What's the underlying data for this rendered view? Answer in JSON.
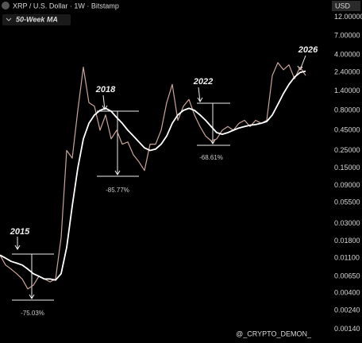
{
  "chart_data": {
    "type": "line",
    "title": "XRP / U.S. Dollar · 1W · Bitstamp",
    "currency": "USD",
    "log_scale": true,
    "grid": false,
    "ylim": [
      0.0011,
      16
    ],
    "yticks": [
      {
        "value": 12,
        "label": "12.00000"
      },
      {
        "value": 7,
        "label": "7.00000"
      },
      {
        "value": 4,
        "label": "4.00000"
      },
      {
        "value": 2.4,
        "label": "2.40000"
      },
      {
        "value": 1.4,
        "label": "1.40000"
      },
      {
        "value": 0.8,
        "label": "0.80000"
      },
      {
        "value": 0.45,
        "label": "0.45000"
      },
      {
        "value": 0.25,
        "label": "0.25000"
      },
      {
        "value": 0.15,
        "label": "0.15000"
      },
      {
        "value": 0.09,
        "label": "0.09000"
      },
      {
        "value": 0.055,
        "label": "0.05500"
      },
      {
        "value": 0.03,
        "label": "0.03000"
      },
      {
        "value": 0.018,
        "label": "0.01800"
      },
      {
        "value": 0.011,
        "label": "0.01100"
      },
      {
        "value": 0.0065,
        "label": "0.00650"
      },
      {
        "value": 0.004,
        "label": "0.00400"
      },
      {
        "value": 0.0024,
        "label": "0.00240"
      },
      {
        "value": 0.0014,
        "label": "0.00140"
      }
    ],
    "series": [
      {
        "color": "#c9a49a",
        "values": [
          0.012,
          0.009,
          0.008,
          0.007,
          0.006,
          0.0045,
          0.005,
          0.0065,
          0.006,
          0.0055,
          0.006,
          0.02,
          0.25,
          0.2,
          0.8,
          2.8,
          1.0,
          0.9,
          0.45,
          0.7,
          0.35,
          0.45,
          0.3,
          0.32,
          0.22,
          0.18,
          0.14,
          0.3,
          0.3,
          0.45,
          1.0,
          1.7,
          0.6,
          0.9,
          1.1,
          0.7,
          0.5,
          0.38,
          0.33,
          0.35,
          0.45,
          0.5,
          0.45,
          0.55,
          0.6,
          0.5,
          0.6,
          0.55,
          0.6,
          2.2,
          3.2,
          2.6,
          3.0,
          2.0,
          2.8,
          2.2
        ]
      },
      {
        "name": "50-Week MA",
        "color": "#ffffff",
        "values": [
          0.012,
          0.011,
          0.01,
          0.0095,
          0.009,
          0.008,
          0.007,
          0.0065,
          0.006,
          0.006,
          0.0058,
          0.007,
          0.015,
          0.05,
          0.15,
          0.35,
          0.55,
          0.7,
          0.8,
          0.85,
          0.78,
          0.65,
          0.55,
          0.45,
          0.38,
          0.32,
          0.27,
          0.25,
          0.26,
          0.3,
          0.38,
          0.55,
          0.7,
          0.8,
          0.85,
          0.8,
          0.7,
          0.6,
          0.5,
          0.42,
          0.4,
          0.42,
          0.45,
          0.48,
          0.5,
          0.52,
          0.53,
          0.55,
          0.58,
          0.7,
          0.95,
          1.3,
          1.7,
          2.1,
          2.4,
          2.5
        ]
      }
    ],
    "annotations": [
      "2015",
      "2018",
      "2022",
      "2026",
      "-75.03%",
      "-85.77%",
      "-68.61%"
    ],
    "watermark": "@_CRYPTO_DEMON_"
  }
}
